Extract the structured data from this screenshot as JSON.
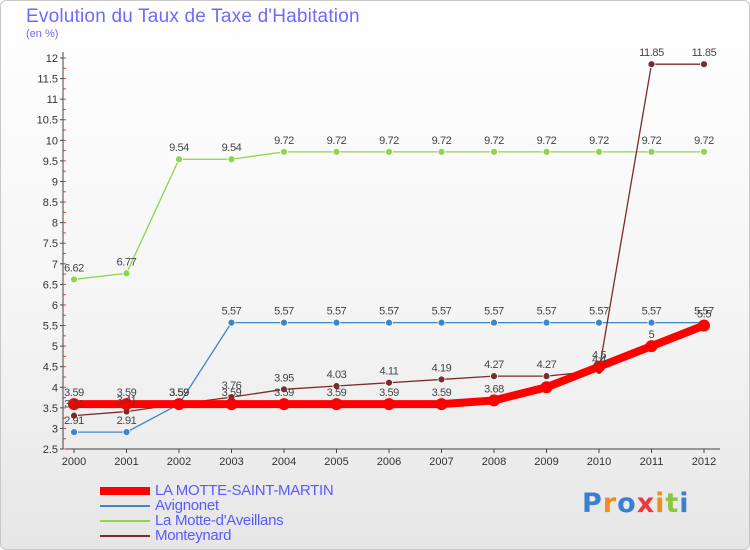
{
  "title": "Evolution du Taux de Taxe d'Habitation",
  "subtitle": "(en %)",
  "brand": "Proxiti",
  "chart_data": {
    "type": "line",
    "title": "Evolution du Taux de Taxe d'Habitation",
    "ylabel": "(en %)",
    "ylim": [
      2.5,
      12
    ],
    "yticks": [
      2.5,
      3,
      3.5,
      4,
      4.5,
      5,
      5.5,
      6,
      6.5,
      7,
      7.5,
      8,
      8.5,
      9,
      9.5,
      10,
      10.5,
      11,
      11.5,
      12
    ],
    "x": [
      "2000",
      "2001",
      "2002",
      "2003",
      "2004",
      "2005",
      "2006",
      "2007",
      "2008",
      "2009",
      "2010",
      "2011",
      "2012"
    ],
    "grid": false,
    "legend_position": "bottom-left",
    "series": [
      {
        "name": "LA MOTTE-SAINT-MARTIN",
        "color": "#ff0000",
        "values": [
          3.59,
          3.59,
          3.59,
          3.59,
          3.59,
          3.59,
          3.59,
          3.59,
          3.68,
          4.0,
          4.5,
          5.0,
          5.5
        ],
        "labels": [
          "3.59",
          "3.59",
          "3.59",
          "3.59",
          "3.59",
          "3.59",
          "3.59",
          "3.59",
          "3.68",
          "",
          "4.5",
          "5",
          "5.5"
        ]
      },
      {
        "name": "Avignonet",
        "color": "#3d86c6",
        "values": [
          2.91,
          2.91,
          3.59,
          5.57,
          5.57,
          5.57,
          5.57,
          5.57,
          5.57,
          5.57,
          5.57,
          5.57,
          5.57
        ],
        "labels": [
          "2.91",
          "2.91",
          "3.59",
          "5.57",
          "5.57",
          "5.57",
          "5.57",
          "5.57",
          "5.57",
          "5.57",
          "5.57",
          "5.57",
          "5.57"
        ]
      },
      {
        "name": "La Motte-d'Aveillans",
        "color": "#8fd44a",
        "values": [
          6.62,
          6.77,
          9.54,
          9.54,
          9.72,
          9.72,
          9.72,
          9.72,
          9.72,
          9.72,
          9.72,
          9.72,
          9.72
        ],
        "labels": [
          "6.62",
          "6.77",
          "9.54",
          "9.54",
          "9.72",
          "9.72",
          "9.72",
          "9.72",
          "9.72",
          "9.72",
          "9.72",
          "9.72",
          "9.72"
        ]
      },
      {
        "name": "Monteynard",
        "color": "#7a2b2b",
        "values": [
          3.31,
          3.41,
          3.59,
          3.76,
          3.95,
          4.03,
          4.11,
          4.19,
          4.27,
          4.27,
          4.4,
          11.85,
          11.85
        ],
        "labels": [
          "3.31",
          "3.41",
          "3.59",
          "3.76",
          "3.95",
          "4.03",
          "4.11",
          "4.19",
          "4.27",
          "4.27",
          "4.4",
          "11.85",
          "11.85"
        ]
      }
    ]
  }
}
